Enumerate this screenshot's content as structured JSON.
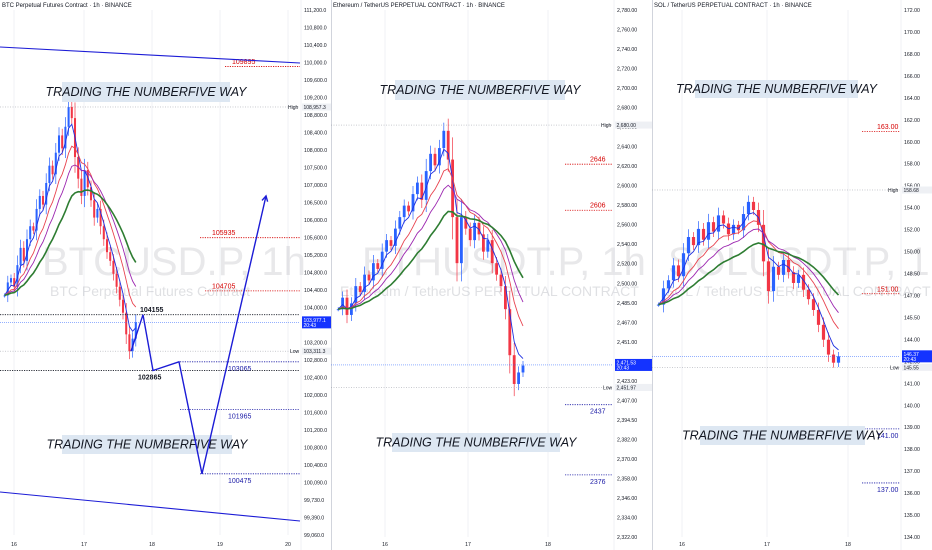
{
  "colors": {
    "up": "#2962ff",
    "down": "#f23645",
    "wave": "#1c1cd6",
    "ema_blue": "#1e2fe0",
    "ema_red": "#e8434f",
    "ema_purple": "#9c27b0",
    "ema_green": "#2e7d32",
    "ema_orange": "#ef6c00",
    "level_red": "#d50000",
    "level_blue": "#1a1aa6",
    "banner_bg": "#dde7f2",
    "grid": "#e0e3eb"
  },
  "panels": [
    {
      "id": "btc",
      "title": "BTC Perpetual Futures Contract · 1h · BINANCE",
      "watermark_symbol": "BTCUSD.P, 1h",
      "watermark_desc": "BTC Perpetual Futures Contract",
      "y_range": [
        99060,
        111200
      ],
      "y_ticks": [
        "111,200.0",
        "110,800.0",
        "110,400.0",
        "110,000.0",
        "109,600.0",
        "109,200.0",
        "108,800.0",
        "108,400.0",
        "108,000.0",
        "107,500.0",
        "107,000.0",
        "106,500.0",
        "106,000.0",
        "105,600.0",
        "105,200.0",
        "104,800.0",
        "104,400.0",
        "104,000.0",
        "103,600.0",
        "103,200.0",
        "102,800.0",
        "102,400.0",
        "102,000.0",
        "101,600.0",
        "101,200.0",
        "100,800.0",
        "100,400.0",
        "100,090.0",
        "99,730.0",
        "99,390.0",
        "99,060.0"
      ],
      "x_labels": [
        "16",
        "17",
        "18",
        "19",
        "20"
      ],
      "high_tag": {
        "label": "High",
        "value": "108,957.3"
      },
      "low_tag": {
        "label": "Low",
        "value": "103,311.3"
      },
      "price_tag": {
        "value": "103,977.1",
        "time": "20:43"
      },
      "banners": [
        "TRADING THE NUMBERFIVE WAY",
        "TRADING THE NUMBERFIVE WAY"
      ],
      "levels": [
        {
          "label": "109895",
          "color": "red"
        },
        {
          "label": "105935",
          "color": "red"
        },
        {
          "label": "104705",
          "color": "red"
        },
        {
          "label": "104155",
          "color": "black"
        },
        {
          "label": "103065",
          "color": "blue"
        },
        {
          "label": "102865",
          "color": "black"
        },
        {
          "label": "101965",
          "color": "blue"
        },
        {
          "label": "100475",
          "color": "blue"
        }
      ]
    },
    {
      "id": "eth",
      "title": "Ethereum / TetherUS PERPETUAL CONTRACT · 1h · BINANCE",
      "watermark_symbol": "ETHUSDT.P, 1h",
      "watermark_desc": "Ethereum / TetherUS PERPETUAL CONTRACT",
      "y_range": [
        2322,
        2780
      ],
      "y_ticks": [
        "2,780.00",
        "2,760.00",
        "2,740.00",
        "2,720.00",
        "2,700.00",
        "2,680.00",
        "2,660.00",
        "2,640.00",
        "2,620.00",
        "2,600.00",
        "2,580.00",
        "2,560.00",
        "2,540.00",
        "2,520.00",
        "2,500.00",
        "2,485.00",
        "2,467.00",
        "2,451.00",
        "2,439.00",
        "2,423.00",
        "2,407.00",
        "2,394.50",
        "2,382.00",
        "2,370.00",
        "2,358.00",
        "2,346.00",
        "2,334.00",
        "2,322.00"
      ],
      "x_labels": [
        "16",
        "17",
        "18"
      ],
      "high_tag": {
        "label": "High",
        "value": "2,680.00"
      },
      "low_tag": {
        "label": "Low",
        "value": "2,451.97"
      },
      "price_tag": {
        "value": "2,471.53",
        "time": "20:43"
      },
      "banners": [
        "TRADING THE NUMBERFIVE WAY",
        "TRADING THE NUMBERFIVE WAY"
      ],
      "levels": [
        {
          "label": "2646",
          "color": "red"
        },
        {
          "label": "2606",
          "color": "red"
        },
        {
          "label": "2437",
          "color": "blue"
        },
        {
          "label": "2376",
          "color": "blue"
        }
      ]
    },
    {
      "id": "sol",
      "title": "SOL / TetherUS PERPETUAL CONTRACT · 1h · BINANCE",
      "watermark_symbol": "SOLUSDT.P, 1h",
      "watermark_desc": "SOL / TetherUS PERPETUAL CONTRACT",
      "y_range": [
        133,
        172
      ],
      "y_ticks": [
        "172.00",
        "170.00",
        "168.00",
        "166.00",
        "164.00",
        "162.00",
        "160.00",
        "158.00",
        "156.00",
        "154.00",
        "152.00",
        "150.00",
        "148.50",
        "147.00",
        "145.50",
        "144.00",
        "142.00",
        "141.00",
        "140.00",
        "139.00",
        "138.00",
        "137.00",
        "136.00",
        "135.00",
        "134.00"
      ],
      "x_labels": [
        "16",
        "17",
        "18"
      ],
      "high_tag": {
        "label": "High",
        "value": "158.68"
      },
      "low_tag": {
        "label": "Low",
        "value": "145.55"
      },
      "price_tag": {
        "value": "146.37",
        "time": "20:43"
      },
      "banners": [
        "TRADING THE NUMBERFIVE WAY",
        "TRADING THE NUMBERFIVE WAY"
      ],
      "levels": [
        {
          "label": "163.00",
          "color": "red"
        },
        {
          "label": "151.00",
          "color": "red"
        },
        {
          "label": "141.00",
          "color": "blue"
        },
        {
          "label": "137.00",
          "color": "blue"
        }
      ]
    }
  ],
  "chart_data": [
    {
      "type": "candlestick",
      "title": "BTC Perpetual Futures Contract · 1h · BINANCE",
      "ylim": [
        99060,
        111200
      ],
      "x": [
        "16",
        "17",
        "18",
        "19",
        "20"
      ],
      "horizontal_levels": [
        109895,
        105935,
        104705,
        104155,
        103065,
        102865,
        101965,
        100475
      ],
      "projected_wave": [
        104155,
        102865,
        103065,
        100475,
        106900
      ],
      "close_series": [
        104600,
        104900,
        105000,
        104800,
        105300,
        105700,
        105400,
        105900,
        106200,
        106100,
        106600,
        106900,
        106700,
        107200,
        107600,
        107400,
        107900,
        108300,
        108000,
        108500,
        108957,
        108700,
        107800,
        107300,
        106900,
        107500,
        107100,
        106800,
        106400,
        106600,
        106200,
        105900,
        105600,
        105400,
        105100,
        104800,
        104500,
        104200,
        103700,
        103311,
        103600,
        103977
      ]
    },
    {
      "type": "candlestick",
      "title": "Ethereum / TetherUS PERPETUAL CONTRACT · 1h · BINANCE",
      "ylim": [
        2322,
        2780
      ],
      "x": [
        "16",
        "17",
        "18"
      ],
      "horizontal_levels": [
        2646,
        2606,
        2437,
        2376
      ],
      "close_series": [
        2520,
        2530,
        2515,
        2525,
        2540,
        2535,
        2550,
        2545,
        2560,
        2555,
        2570,
        2580,
        2575,
        2590,
        2600,
        2610,
        2605,
        2620,
        2630,
        2615,
        2640,
        2655,
        2645,
        2660,
        2675,
        2650,
        2600,
        2560,
        2600,
        2590,
        2580,
        2595,
        2585,
        2570,
        2580,
        2560,
        2550,
        2540,
        2520,
        2480,
        2455,
        2465,
        2471
      ]
    },
    {
      "type": "candlestick",
      "title": "SOL / TetherUS PERPETUAL CONTRACT · 1h · BINANCE",
      "ylim": [
        133,
        172
      ],
      "x": [
        "16",
        "17",
        "18"
      ],
      "horizontal_levels": [
        163.0,
        151.0,
        141.0,
        137.0
      ],
      "close_series": [
        150.2,
        151.4,
        152.0,
        153.1,
        152.3,
        154.0,
        155.2,
        154.6,
        155.8,
        155.0,
        156.3,
        155.6,
        156.8,
        156.2,
        155.4,
        156.1,
        155.7,
        156.9,
        157.8,
        157.2,
        156.1,
        153.4,
        151.2,
        153.0,
        152.4,
        153.5,
        152.6,
        151.8,
        152.4,
        151.3,
        150.6,
        149.8,
        148.7,
        147.6,
        146.5,
        145.9,
        146.37
      ]
    }
  ]
}
